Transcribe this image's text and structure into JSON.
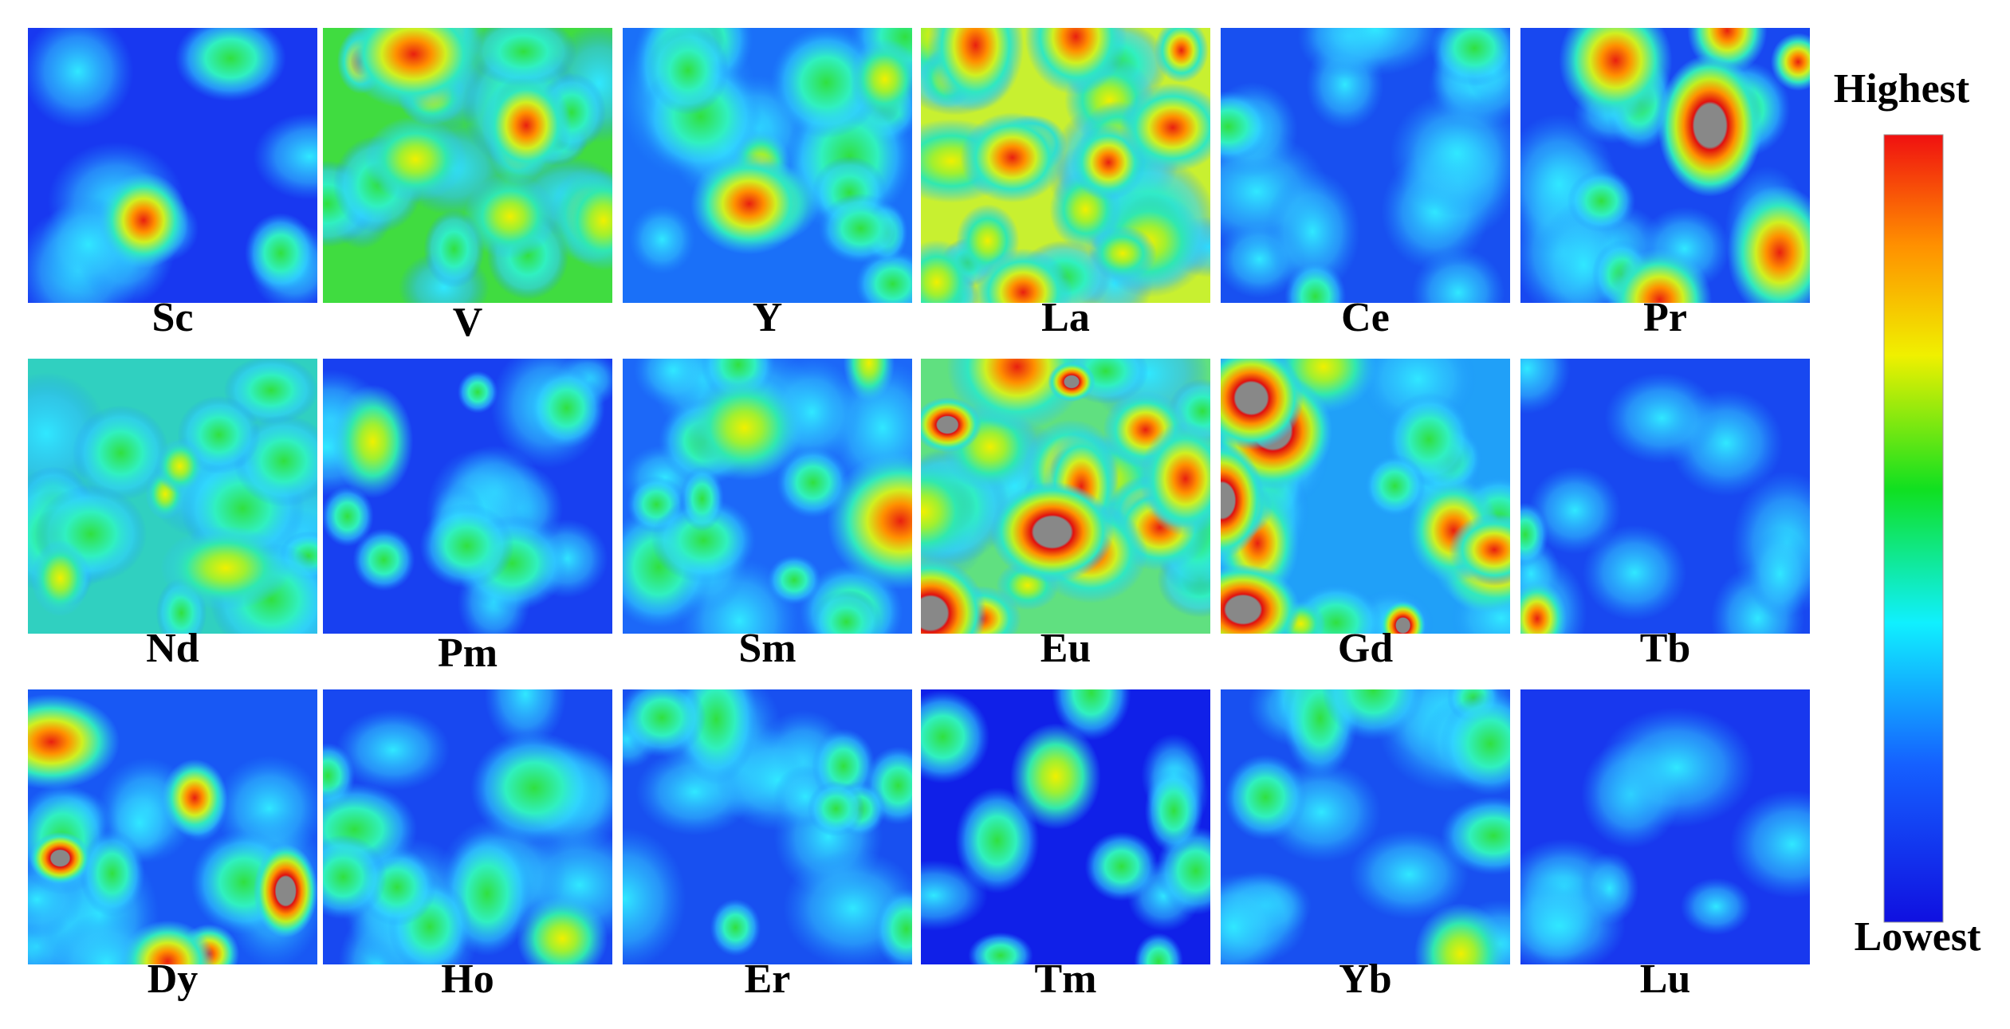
{
  "panels": [
    "Sc",
    "V",
    "Y",
    "La",
    "Ce",
    "Pr",
    "Nd",
    "Pm",
    "Sm",
    "Eu",
    "Gd",
    "Tb",
    "Dy",
    "Ho",
    "Er",
    "Tm",
    "Yb",
    "Lu"
  ],
  "colorbar": {
    "high": "Highest",
    "low": "Lowest"
  }
}
